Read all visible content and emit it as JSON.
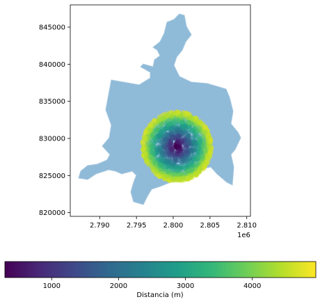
{
  "chart_data": {
    "type": "scatter",
    "title": "",
    "xlabel": "",
    "ylabel": "",
    "x_offset_label": "1e6",
    "xlim": [
      2.786,
      2.8105
    ],
    "ylim": [
      819500,
      848000
    ],
    "x_ticks": [
      2.79,
      2.795,
      2.8,
      2.805,
      2.81
    ],
    "x_tick_labels": [
      "2.790",
      "2.795",
      "2.800",
      "2.805",
      "2.810"
    ],
    "y_ticks": [
      820000,
      825000,
      830000,
      835000,
      840000,
      845000
    ],
    "y_tick_labels": [
      "820000",
      "825000",
      "830000",
      "835000",
      "840000",
      "845000"
    ],
    "grid": false,
    "basemap_color": "#8fbad8",
    "points_center": [
      2.8005,
      828900
    ],
    "points_max_radius": 4700,
    "colorbar": {
      "label": "Distancia (m)",
      "colormap": "viridis",
      "range": [
        300,
        4950
      ],
      "ticks": [
        1000,
        2000,
        3000,
        4000
      ],
      "tick_labels": [
        "1000",
        "2000",
        "3000",
        "4000"
      ],
      "colors": [
        "#440154",
        "#482878",
        "#3e4989",
        "#31688e",
        "#26828e",
        "#1f9e89",
        "#35b779",
        "#6ece58",
        "#b5de2b",
        "#fde725"
      ]
    }
  }
}
